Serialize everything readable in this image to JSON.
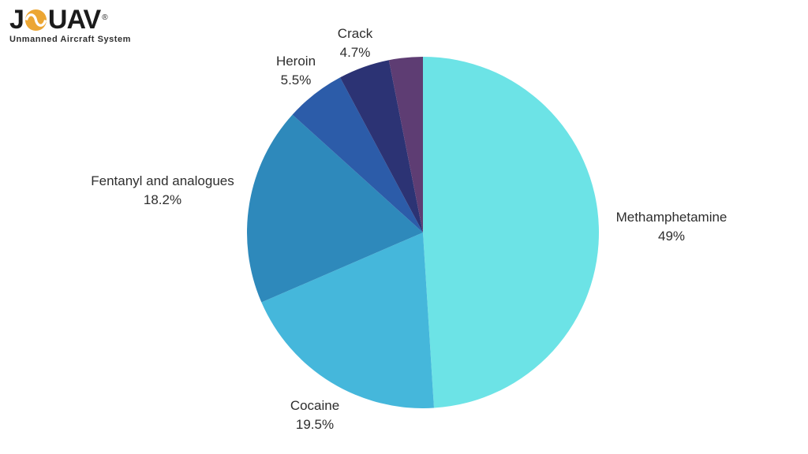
{
  "logo": {
    "brand_prefix": "J",
    "brand_suffix": "UAV",
    "registered_mark": "®",
    "tagline": "Unmanned Aircraft System",
    "gold": "#ECA633",
    "text_color": "#1b1b1b"
  },
  "chart_data": {
    "type": "pie",
    "title": "",
    "background": "#ffffff",
    "label_color": "#2e2e2e",
    "start_angle_deg": 0,
    "direction": "clockwise",
    "legend_position": "none",
    "labels": "outside",
    "slices": [
      {
        "name": "Methamphetamine",
        "value": 49,
        "percent_label": "49%",
        "color": "#6CE3E6",
        "label_visible": true
      },
      {
        "name": "Cocaine",
        "value": 19.5,
        "percent_label": "19.5%",
        "color": "#45B7DB",
        "label_visible": true
      },
      {
        "name": "Fentanyl and analogues",
        "value": 18.2,
        "percent_label": "18.2%",
        "color": "#2E89BB",
        "label_visible": true
      },
      {
        "name": "Heroin",
        "value": 5.5,
        "percent_label": "5.5%",
        "color": "#2C5CA9",
        "label_visible": true
      },
      {
        "name": "Crack",
        "value": 4.7,
        "percent_label": "4.7%",
        "color": "#2C3374",
        "label_visible": true
      },
      {
        "name": "",
        "value": 3.1,
        "percent_label": "",
        "color": "#5E3D73",
        "label_visible": false
      }
    ]
  }
}
